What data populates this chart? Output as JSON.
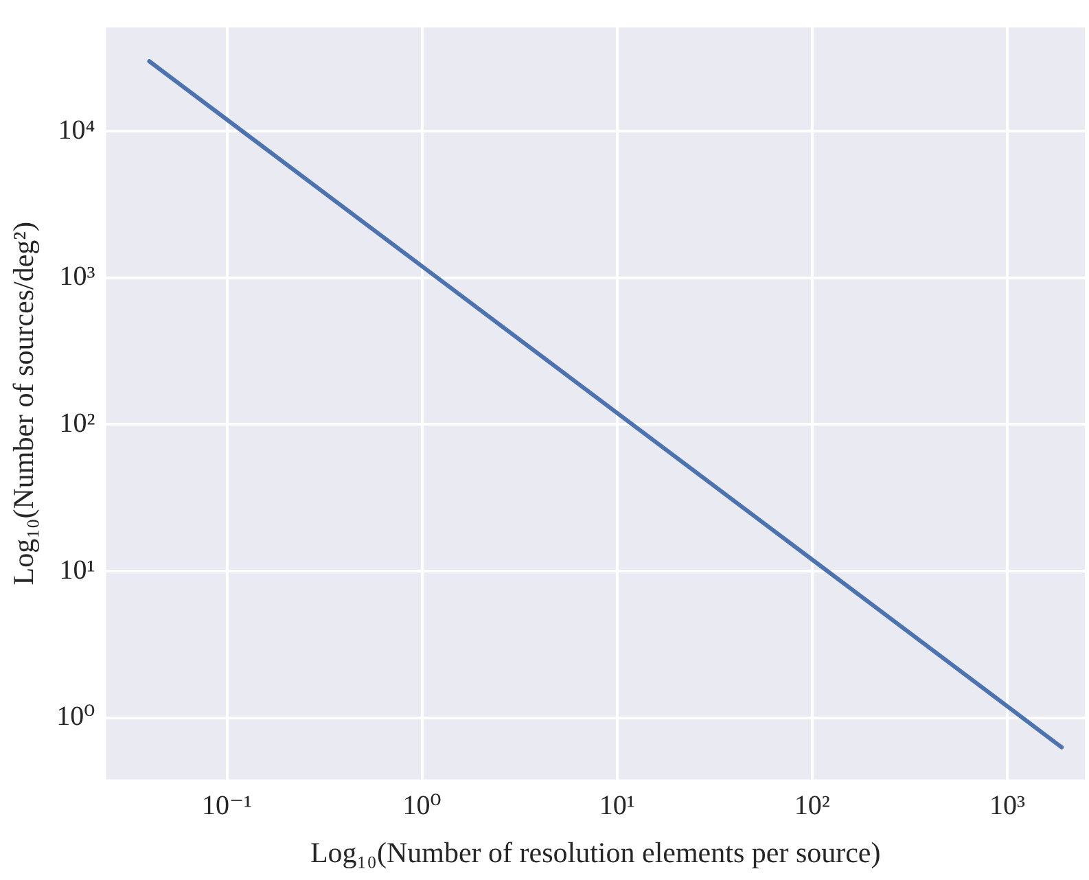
{
  "chart_data": {
    "type": "line",
    "xlabel": "Log₁₀(Number of resolution elements per source)",
    "ylabel": "Log₁₀(Number of sources/deg²)",
    "x": [
      0.04,
      0.1,
      1,
      10,
      100,
      1000,
      1900
    ],
    "series": [
      {
        "color": "#4c72b0",
        "values": [
          30000,
          12000,
          1200,
          120,
          12,
          1.2,
          0.63
        ]
      }
    ],
    "log": "xy",
    "xlim": [
      0.024,
      2500
    ],
    "ylim": [
      0.38,
      51000
    ],
    "xticks": [
      {
        "value": 0.1,
        "label": "10⁻¹"
      },
      {
        "value": 1,
        "label": "10⁰"
      },
      {
        "value": 10,
        "label": "10¹"
      },
      {
        "value": 100,
        "label": "10²"
      },
      {
        "value": 1000,
        "label": "10³"
      }
    ],
    "yticks": [
      {
        "value": 1,
        "label": "10⁰"
      },
      {
        "value": 10,
        "label": "10¹"
      },
      {
        "value": 100,
        "label": "10²"
      },
      {
        "value": 1000,
        "label": "10³"
      },
      {
        "value": 10000,
        "label": "10⁴"
      }
    ],
    "grid": true,
    "marker": "none",
    "line_style": "solid"
  }
}
